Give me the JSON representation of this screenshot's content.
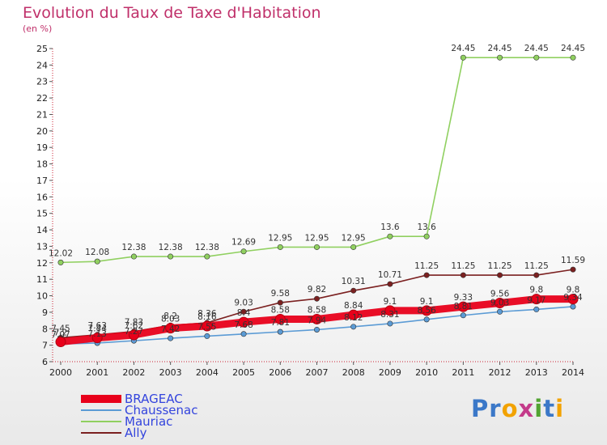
{
  "chart_data": {
    "type": "line",
    "title": "Evolution du Taux de Taxe d'Habitation",
    "unit_label": "(en %)",
    "x": [
      "2000",
      "2001",
      "2002",
      "2003",
      "2004",
      "2005",
      "2006",
      "2007",
      "2008",
      "2009",
      "2010",
      "2011",
      "2012",
      "2013",
      "2014"
    ],
    "ylim": [
      6,
      25
    ],
    "yticks": [
      6,
      7,
      8,
      9,
      10,
      11,
      12,
      13,
      14,
      15,
      16,
      17,
      18,
      19,
      20,
      21,
      22,
      23,
      24,
      25
    ],
    "grid": false,
    "legend_position": "bottom-left",
    "series": [
      {
        "name": "BRAGEAC",
        "color": "#e8001a",
        "values": [
          7.2,
          7.44,
          7.62,
          8.03,
          8.16,
          8.4,
          8.58,
          8.58,
          8.84,
          9.1,
          9.1,
          9.33,
          9.56,
          9.8,
          9.8
        ],
        "labels": [
          "7.2",
          "7.44",
          "7.62",
          "8.03",
          "8.16",
          "8.4",
          "8.58",
          "8.58",
          "8.84",
          "9.1",
          "9.1",
          "9.33",
          "9.56",
          "9.8",
          "9.8"
        ]
      },
      {
        "name": "Chaussenac",
        "color": "#5b9bd5",
        "values": [
          7.07,
          7.13,
          7.27,
          7.42,
          7.55,
          7.68,
          7.81,
          7.94,
          8.12,
          8.31,
          8.56,
          8.81,
          9.03,
          9.17,
          9.34
        ],
        "labels": [
          "7.07",
          "7.13",
          "7.27",
          "7.42",
          "7.55",
          "7.68",
          "7.81",
          "7.94",
          "8.12",
          "8.31",
          "8.56",
          "8.81",
          "9.03",
          "9.17",
          "9.34"
        ]
      },
      {
        "name": "Mauriac",
        "color": "#90d060",
        "values": [
          12.02,
          12.08,
          12.38,
          12.38,
          12.38,
          12.69,
          12.95,
          12.95,
          12.95,
          13.6,
          13.6,
          24.45,
          24.45,
          24.45,
          24.45
        ],
        "labels": [
          "12.02",
          "12.08",
          "12.38",
          "12.38",
          "12.38",
          "12.69",
          "12.95",
          "12.95",
          "12.95",
          "13.6",
          "13.6",
          "24.45",
          "24.45",
          "24.45",
          "24.45"
        ]
      },
      {
        "name": "Ally",
        "color": "#7b2020",
        "values": [
          7.45,
          7.63,
          7.83,
          8.2,
          8.36,
          9.03,
          9.58,
          9.82,
          10.31,
          10.71,
          11.25,
          11.25,
          11.25,
          11.25,
          11.59
        ],
        "labels": [
          "7.45",
          "7.63",
          "7.83",
          "8.2",
          "8.36",
          "9.03",
          "9.58",
          "9.82",
          "10.31",
          "10.71",
          "11.25",
          "11.25",
          "11.25",
          "11.25",
          "11.59"
        ]
      }
    ]
  },
  "logo": {
    "text": "Proxiti",
    "letters": [
      {
        "ch": "P",
        "color": "#3b78c8"
      },
      {
        "ch": "r",
        "color": "#3b78c8"
      },
      {
        "ch": "o",
        "color": "#f2a200"
      },
      {
        "ch": "x",
        "color": "#c43a8a"
      },
      {
        "ch": "i",
        "color": "#52a332"
      },
      {
        "ch": "t",
        "color": "#3b78c8"
      },
      {
        "ch": "i",
        "color": "#f2a200"
      }
    ]
  }
}
